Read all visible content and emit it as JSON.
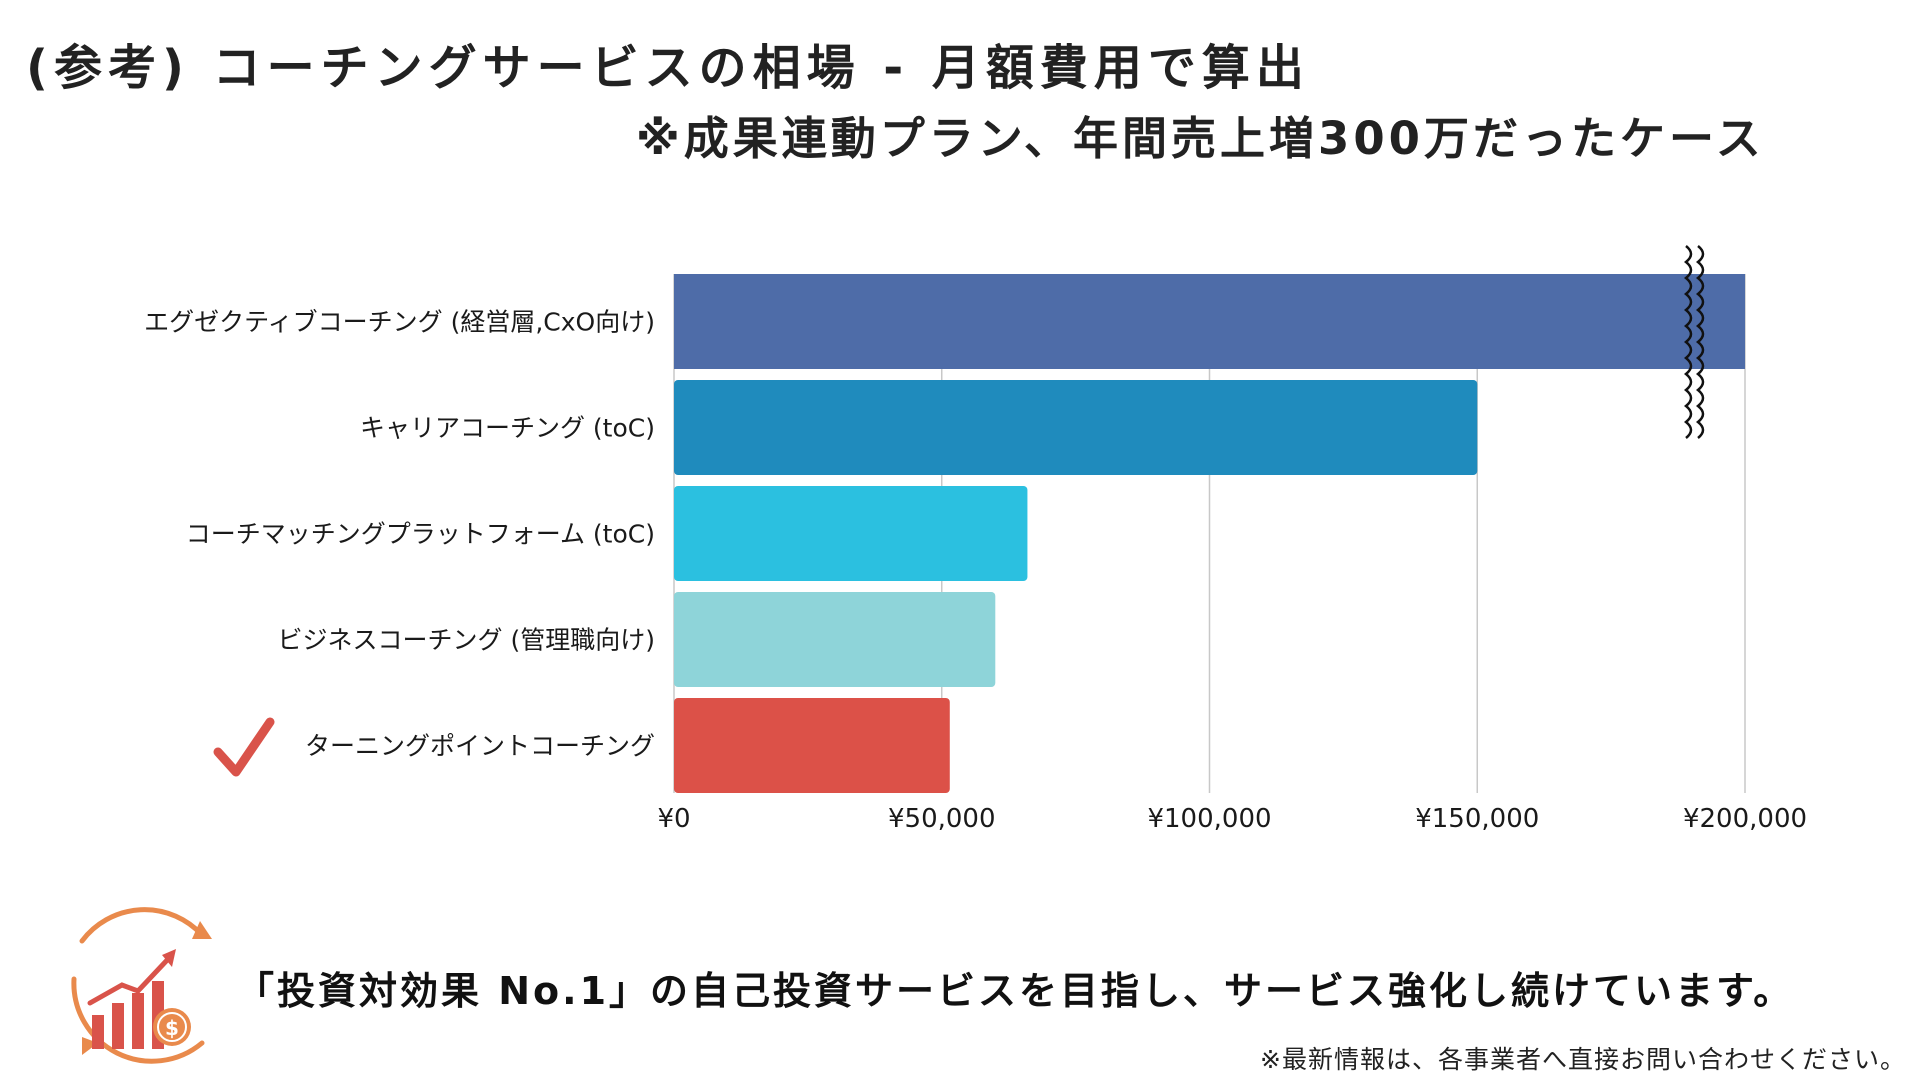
{
  "header": {
    "title": "(参考) コーチングサービスの相場 - 月額費用で算出",
    "subtitle": "※成果連動プラン、年間売上増300万だったケース"
  },
  "chart_data": {
    "type": "bar",
    "orientation": "horizontal",
    "categories": [
      "エグゼクティブコーチング (経営層,CxO向け)",
      "キャリアコーチング (toC)",
      "コーチマッチングプラットフォーム (toC)",
      "ビジネスコーチング (管理職向け)",
      "ターニングポイントコーチング"
    ],
    "values": [
      200000,
      150000,
      66000,
      60000,
      51500
    ],
    "colors": [
      "#4e6ca8",
      "#1f8bbd",
      "#2bc0e0",
      "#8ed4d9",
      "#dc5148"
    ],
    "xlim": [
      0,
      200000
    ],
    "ticks": [
      {
        "value": 0,
        "label": "¥0"
      },
      {
        "value": 50000,
        "label": "¥50,000"
      },
      {
        "value": 100000,
        "label": "¥100,000"
      },
      {
        "value": 150000,
        "label": "¥150,000"
      },
      {
        "value": 200000,
        "label": "¥200,000"
      }
    ],
    "axis_break_on_first_bar": true,
    "highlighted_category": "ターニングポイントコーチング",
    "grid": "vertical",
    "gridline_color": "#c8c8c8"
  },
  "footer": {
    "message": "「投資対効果 No.1」の自己投資サービスを目指し、サービス強化し続けています。",
    "note": "※最新情報は、各事業者へ直接お問い合わせください。",
    "icon": "roi-growth-icon",
    "accent_color": "#e98a4c"
  }
}
